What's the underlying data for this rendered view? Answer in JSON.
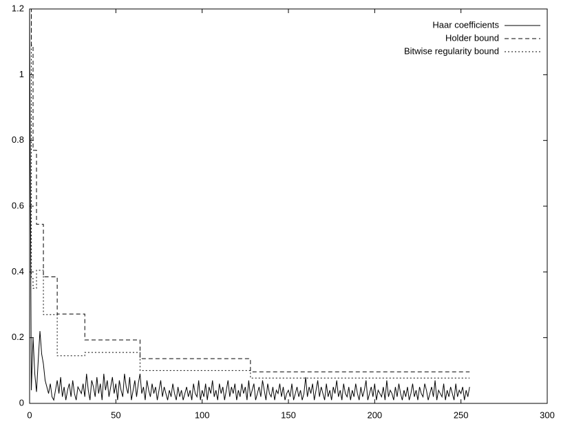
{
  "chart_data": {
    "type": "line",
    "xlim": [
      0,
      300
    ],
    "xticks": [
      0,
      50,
      100,
      150,
      200,
      250,
      300
    ],
    "ylim": [
      0,
      1.2
    ],
    "yticks": [
      0,
      0.2,
      0.4,
      0.6,
      0.8,
      1,
      1.2
    ],
    "legend": "top-right",
    "series": [
      {
        "name": "Haar coefficients",
        "color": "#000000",
        "dash": "solid",
        "x": [
          0,
          1,
          2,
          3,
          4,
          5,
          6,
          7,
          8,
          9,
          10,
          11,
          12,
          13,
          14,
          15,
          16,
          17,
          18,
          19,
          20,
          21,
          22,
          23,
          24,
          25,
          26,
          27,
          28,
          29,
          30,
          31,
          32,
          33,
          34,
          35,
          36,
          37,
          38,
          39,
          40,
          41,
          42,
          43,
          44,
          45,
          46,
          47,
          48,
          49,
          50,
          51,
          52,
          53,
          54,
          55,
          56,
          57,
          58,
          59,
          60,
          61,
          62,
          63,
          64,
          65,
          66,
          67,
          68,
          69,
          70,
          71,
          72,
          73,
          74,
          75,
          76,
          77,
          78,
          79,
          80,
          81,
          82,
          83,
          84,
          85,
          86,
          87,
          88,
          89,
          90,
          91,
          92,
          93,
          94,
          95,
          96,
          97,
          98,
          99,
          100,
          101,
          102,
          103,
          104,
          105,
          106,
          107,
          108,
          109,
          110,
          111,
          112,
          113,
          114,
          115,
          116,
          117,
          118,
          119,
          120,
          121,
          122,
          123,
          124,
          125,
          126,
          127,
          128,
          129,
          130,
          131,
          132,
          133,
          134,
          135,
          136,
          137,
          138,
          139,
          140,
          141,
          142,
          143,
          144,
          145,
          146,
          147,
          148,
          149,
          150,
          151,
          152,
          153,
          154,
          155,
          156,
          157,
          158,
          159,
          160,
          161,
          162,
          163,
          164,
          165,
          166,
          167,
          168,
          169,
          170,
          171,
          172,
          173,
          174,
          175,
          176,
          177,
          178,
          179,
          180,
          181,
          182,
          183,
          184,
          185,
          186,
          187,
          188,
          189,
          190,
          191,
          192,
          193,
          194,
          195,
          196,
          197,
          198,
          199,
          200,
          201,
          202,
          203,
          204,
          205,
          206,
          207,
          208,
          209,
          210,
          211,
          212,
          213,
          214,
          215,
          216,
          217,
          218,
          219,
          220,
          221,
          222,
          223,
          224,
          225,
          226,
          227,
          228,
          229,
          230,
          231,
          232,
          233,
          234,
          235,
          236,
          237,
          238,
          239,
          240,
          241,
          242,
          243,
          244,
          245,
          246,
          247,
          248,
          249,
          250,
          251,
          252,
          253,
          254,
          255
        ],
        "values": [
          1.2,
          0.04,
          0.2,
          0.09,
          0.035,
          0.13,
          0.22,
          0.15,
          0.12,
          0.07,
          0.05,
          0.03,
          0.06,
          0.02,
          0.01,
          0.04,
          0.07,
          0.03,
          0.08,
          0.02,
          0.05,
          0.01,
          0.04,
          0.06,
          0.02,
          0.07,
          0.03,
          0.01,
          0.05,
          0.04,
          0.03,
          0.06,
          0.02,
          0.09,
          0.04,
          0.01,
          0.07,
          0.05,
          0.02,
          0.08,
          0.03,
          0.06,
          0.01,
          0.09,
          0.04,
          0.07,
          0.02,
          0.05,
          0.08,
          0.03,
          0.06,
          0.01,
          0.07,
          0.04,
          0.02,
          0.09,
          0.05,
          0.03,
          0.08,
          0.01,
          0.04,
          0.07,
          0.02,
          0.06,
          0.09,
          0.03,
          0.05,
          0.01,
          0.07,
          0.04,
          0.02,
          0.06,
          0.03,
          0.05,
          0.01,
          0.04,
          0.07,
          0.02,
          0.05,
          0.03,
          0.01,
          0.04,
          0.02,
          0.06,
          0.03,
          0.01,
          0.05,
          0.02,
          0.04,
          0.01,
          0.03,
          0.05,
          0.02,
          0.04,
          0.01,
          0.06,
          0.03,
          0.02,
          0.07,
          0.01,
          0.04,
          0.02,
          0.06,
          0.01,
          0.05,
          0.03,
          0.07,
          0.02,
          0.04,
          0.01,
          0.06,
          0.03,
          0.05,
          0.01,
          0.04,
          0.07,
          0.02,
          0.05,
          0.03,
          0.06,
          0.01,
          0.04,
          0.02,
          0.06,
          0.03,
          0.05,
          0.01,
          0.07,
          0.02,
          0.04,
          0.06,
          0.01,
          0.03,
          0.05,
          0.02,
          0.07,
          0.04,
          0.01,
          0.06,
          0.03,
          0.02,
          0.05,
          0.01,
          0.04,
          0.03,
          0.06,
          0.02,
          0.05,
          0.01,
          0.03,
          0.04,
          0.02,
          0.06,
          0.01,
          0.03,
          0.05,
          0.02,
          0.04,
          0.01,
          0.03,
          0.08,
          0.02,
          0.05,
          0.03,
          0.06,
          0.01,
          0.04,
          0.07,
          0.02,
          0.05,
          0.03,
          0.01,
          0.06,
          0.02,
          0.04,
          0.01,
          0.05,
          0.03,
          0.07,
          0.02,
          0.04,
          0.01,
          0.06,
          0.03,
          0.02,
          0.05,
          0.01,
          0.04,
          0.02,
          0.06,
          0.03,
          0.01,
          0.05,
          0.02,
          0.04,
          0.07,
          0.01,
          0.03,
          0.05,
          0.02,
          0.06,
          0.01,
          0.04,
          0.03,
          0.02,
          0.05,
          0.01,
          0.07,
          0.02,
          0.04,
          0.03,
          0.01,
          0.05,
          0.02,
          0.06,
          0.03,
          0.01,
          0.04,
          0.02,
          0.05,
          0.01,
          0.03,
          0.06,
          0.02,
          0.04,
          0.01,
          0.05,
          0.03,
          0.02,
          0.06,
          0.04,
          0.01,
          0.03,
          0.05,
          0.02,
          0.07,
          0.01,
          0.04,
          0.03,
          0.02,
          0.06,
          0.01,
          0.04,
          0.02,
          0.05,
          0.03,
          0.01,
          0.06,
          0.02,
          0.04,
          0.03,
          0.05,
          0.01,
          0.04,
          0.02,
          0.05
        ]
      },
      {
        "name": "Holder bound",
        "color": "#000000",
        "dash": "dashed",
        "x": [
          0,
          1,
          1,
          2,
          2,
          4,
          4,
          8,
          8,
          16,
          16,
          32,
          32,
          64,
          64,
          128,
          128,
          255
        ],
        "values": [
          1.2,
          1.2,
          1.09,
          1.09,
          0.77,
          0.77,
          0.545,
          0.545,
          0.385,
          0.385,
          0.272,
          0.272,
          0.193,
          0.193,
          0.136,
          0.136,
          0.096,
          0.096
        ]
      },
      {
        "name": "Bitwise regularity bound",
        "color": "#000000",
        "dash": "dotted",
        "x": [
          0,
          1,
          1,
          2,
          2,
          4,
          4,
          8,
          8,
          16,
          16,
          32,
          32,
          64,
          64,
          128,
          128,
          255
        ],
        "values": [
          1.2,
          1.2,
          0.38,
          0.38,
          0.35,
          0.35,
          0.405,
          0.405,
          0.27,
          0.27,
          0.145,
          0.145,
          0.155,
          0.155,
          0.1,
          0.1,
          0.077,
          0.077
        ]
      }
    ]
  }
}
